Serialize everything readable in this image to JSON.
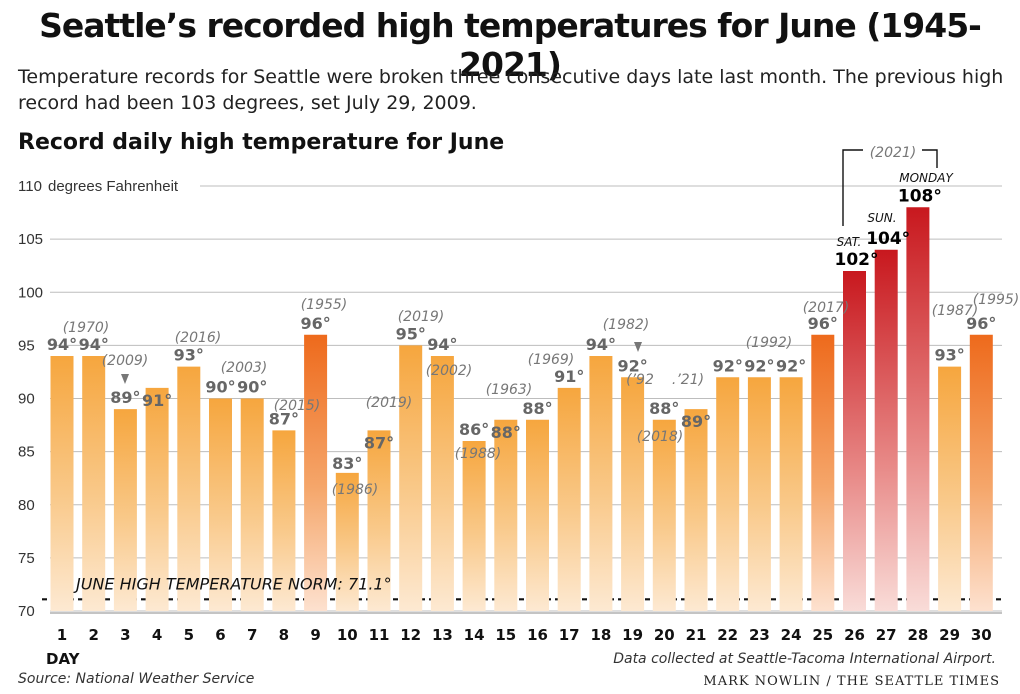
{
  "title": "Seattle’s recorded high temperatures for June (1945-2021)",
  "subtitle": "Temperature records for Seattle were broken three consecutive days late last month. The previous high record had been 103 degrees, set July 29, 2009.",
  "chart_heading": "Record daily high temperature for June",
  "source": "Source: National Weather Service",
  "credit": "MARK NOWLIN / THE SEATTLE TIMES",
  "note": "Data collected at Seattle-Tacoma International Airport.",
  "colors": {
    "orange": "#f6a63e",
    "orange_light": "#fde6c8",
    "dark_orange": "#ee6a1c",
    "red": "#c8181e",
    "red_light": "#f6d0cc"
  },
  "chart_data": {
    "type": "bar",
    "ylim": [
      70,
      110
    ],
    "yticks": [
      70,
      75,
      80,
      85,
      90,
      95,
      100,
      105,
      110
    ],
    "ytick_labels": [
      "70",
      "75",
      "80",
      "85",
      "90",
      "95",
      "100",
      "105",
      "110"
    ],
    "yunit_label": "degrees Fahrenheit",
    "xlabel": "DAY",
    "grid": true,
    "categories": [
      "1",
      "2",
      "3",
      "4",
      "5",
      "6",
      "7",
      "8",
      "9",
      "10",
      "11",
      "12",
      "13",
      "14",
      "15",
      "16",
      "17",
      "18",
      "19",
      "20",
      "21",
      "22",
      "23",
      "24",
      "25",
      "26",
      "27",
      "28",
      "29",
      "30"
    ],
    "values": [
      94,
      94,
      89,
      91,
      93,
      90,
      90,
      87,
      96,
      83,
      87,
      95,
      94,
      86,
      88,
      88,
      91,
      94,
      92,
      88,
      89,
      92,
      92,
      92,
      96,
      102,
      104,
      108,
      93,
      96
    ],
    "value_labels": [
      "94°",
      "94°",
      "89°",
      "91°",
      "93°",
      "90°",
      "90°",
      "87°",
      "96°",
      "83°",
      "87°",
      "95°",
      "94°",
      "86°",
      "88°",
      "88°",
      "91°",
      "94°",
      "92°",
      "88°",
      "89°",
      "92°",
      "92°",
      "92°",
      "96°",
      "102°",
      "104°",
      "108°",
      "93°",
      "96°"
    ],
    "year_labels": [
      {
        "day": 2,
        "text": "(1970)"
      },
      {
        "day": 3,
        "text": "(2009)"
      },
      {
        "day": 5,
        "text": "(2016)"
      },
      {
        "day": 7,
        "text": "(2003)"
      },
      {
        "day": 8,
        "text": "(2015)"
      },
      {
        "day": 9,
        "text": "(1955)"
      },
      {
        "day": 10,
        "text": "(1986)"
      },
      {
        "day": 11,
        "text": "(2019)"
      },
      {
        "day": 12,
        "text": "(2019)"
      },
      {
        "day": 13,
        "text": "(2002)"
      },
      {
        "day": 14,
        "text": "(1988)"
      },
      {
        "day": 15,
        "text": "(1963)"
      },
      {
        "day": 17,
        "text": "(1969)"
      },
      {
        "day": 19,
        "text": "(1982)"
      },
      {
        "day": 20,
        "text": "(’92"
      },
      {
        "day": 20,
        "text": "(2018)"
      },
      {
        "day": 21,
        "text": ".’21)"
      },
      {
        "day": 23,
        "text": "(1992)"
      },
      {
        "day": 25,
        "text": "(2017)"
      },
      {
        "day": 27,
        "text": "(2021)"
      },
      {
        "day": 29,
        "text": "(1987)"
      },
      {
        "day": 30,
        "text": "(1995)"
      }
    ],
    "day_names": [
      {
        "day": 26,
        "text": "SAT."
      },
      {
        "day": 27,
        "text": "SUN."
      },
      {
        "day": 28,
        "text": "MONDAY"
      }
    ],
    "norm": {
      "value": 71.1,
      "label": "JUNE HIGH TEMPERATURE NORM: 71.1°"
    }
  }
}
